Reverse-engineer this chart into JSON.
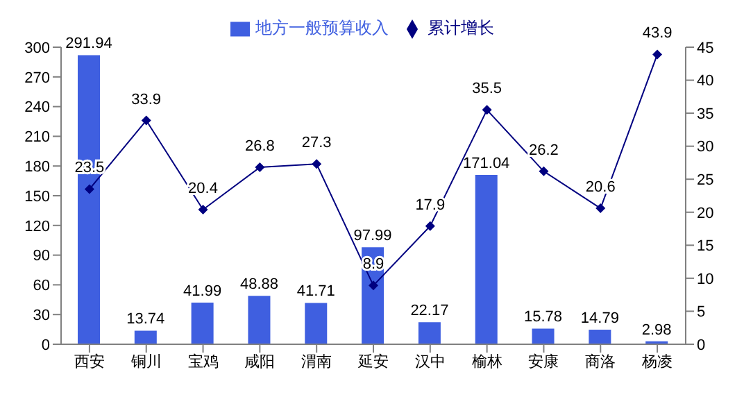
{
  "chart_data": {
    "type": "bar",
    "categories": [
      "西安",
      "铜川",
      "宝鸡",
      "咸阳",
      "渭南",
      "延安",
      "汉中",
      "榆林",
      "安康",
      "商洛",
      "杨凌"
    ],
    "series": [
      {
        "name": "地方一般预算收入",
        "color": "#3f5fe0",
        "values": [
          291.94,
          13.74,
          41.99,
          48.88,
          41.71,
          97.99,
          22.17,
          171.04,
          15.78,
          14.79,
          2.98
        ]
      },
      {
        "name": "累计增长",
        "type": "line",
        "axis": "y2",
        "color": "#000080",
        "marker": "diamond",
        "values": [
          23.5,
          33.9,
          20.4,
          26.8,
          27.3,
          8.9,
          17.9,
          35.5,
          26.2,
          20.6,
          43.9
        ]
      }
    ],
    "ylim": [
      0,
      300
    ],
    "yticks": [
      0,
      30,
      60,
      90,
      120,
      150,
      180,
      210,
      240,
      270,
      300
    ],
    "y2lim": [
      0,
      45
    ],
    "y2ticks": [
      0,
      5,
      10,
      15,
      20,
      25,
      30,
      35,
      40,
      45
    ],
    "data_labels": true,
    "legend": "top"
  }
}
